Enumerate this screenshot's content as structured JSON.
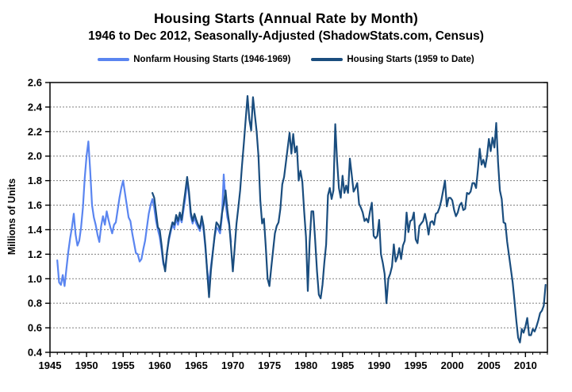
{
  "header": {
    "title": "Housing Starts (Annual Rate by Month)",
    "subtitle": "1946 to Dec 2012, Seasonally-Adjusted (ShadowStats.com, Census)"
  },
  "legend": [
    {
      "label": "Nonfarm Housing Starts (1946-1969)",
      "color": "#5A85F0"
    },
    {
      "label": "Housing Starts (1959 to Date)",
      "color": "#1A4D7E"
    }
  ],
  "colors": {
    "light_series": "#5A85F0",
    "dark_series": "#1A4D7E",
    "gridline": "#808080",
    "frame": "#000000",
    "background": "#FFFFFF"
  },
  "chart_data": {
    "type": "line",
    "title": "Housing Starts (Annual Rate by Month)",
    "subtitle": "1946 to Dec 2012, Seasonally-Adjusted (ShadowStats.com, Census)",
    "xlabel": "",
    "ylabel": "Millions of Units",
    "grid": "horizontal-dotted",
    "legend_position": "top",
    "x_axis": {
      "min": 1945,
      "max": 2013,
      "major_tick_step": 5,
      "minor_tick_step": 1,
      "tick_labels": [
        "1945",
        "1950",
        "1955",
        "1960",
        "1965",
        "1970",
        "1975",
        "1980",
        "1985",
        "1990",
        "1995",
        "2000",
        "2005",
        "2010"
      ]
    },
    "y_axis": {
      "min": 0.4,
      "max": 2.6,
      "tick_step": 0.2,
      "tick_labels": [
        "0.4",
        "0.6",
        "0.8",
        "1.0",
        "1.2",
        "1.4",
        "1.6",
        "1.8",
        "2.0",
        "2.2",
        "2.4",
        "2.6"
      ]
    },
    "series": [
      {
        "name": "Nonfarm Housing Starts (1946-1969)",
        "color": "#5A85F0",
        "start_year": 1946.0,
        "step_years": 0.25,
        "values": [
          1.15,
          0.97,
          0.95,
          1.03,
          0.94,
          1.08,
          1.22,
          1.33,
          1.42,
          1.53,
          1.36,
          1.27,
          1.31,
          1.42,
          1.58,
          1.82,
          2.0,
          2.12,
          1.88,
          1.6,
          1.5,
          1.44,
          1.36,
          1.3,
          1.43,
          1.51,
          1.44,
          1.55,
          1.48,
          1.42,
          1.37,
          1.44,
          1.46,
          1.56,
          1.66,
          1.74,
          1.8,
          1.7,
          1.6,
          1.5,
          1.47,
          1.37,
          1.29,
          1.21,
          1.2,
          1.14,
          1.16,
          1.24,
          1.31,
          1.42,
          1.53,
          1.6,
          1.65,
          1.58,
          1.47,
          1.4,
          1.34,
          1.24,
          1.12,
          1.08,
          1.22,
          1.31,
          1.38,
          1.44,
          1.41,
          1.49,
          1.44,
          1.51,
          1.46,
          1.56,
          1.66,
          1.8,
          1.68,
          1.51,
          1.45,
          1.5,
          1.45,
          1.42,
          1.39,
          1.48,
          1.4,
          1.25,
          1.07,
          0.95,
          1.1,
          1.22,
          1.34,
          1.42,
          1.4,
          1.37,
          1.5,
          1.85,
          1.62,
          1.5,
          1.44,
          1.3
        ]
      },
      {
        "name": "Housing Starts (1959 to Date)",
        "color": "#1A4D7E",
        "start_year": 1959.0,
        "step_years": 0.25,
        "values": [
          1.7,
          1.66,
          1.54,
          1.42,
          1.4,
          1.28,
          1.14,
          1.06,
          1.21,
          1.33,
          1.4,
          1.46,
          1.44,
          1.52,
          1.47,
          1.54,
          1.48,
          1.6,
          1.71,
          1.83,
          1.71,
          1.54,
          1.47,
          1.53,
          1.48,
          1.44,
          1.41,
          1.51,
          1.43,
          1.27,
          1.05,
          0.85,
          1.07,
          1.21,
          1.35,
          1.46,
          1.44,
          1.4,
          1.53,
          1.61,
          1.72,
          1.56,
          1.45,
          1.26,
          1.06,
          1.25,
          1.45,
          1.58,
          1.72,
          1.92,
          2.1,
          2.3,
          2.49,
          2.3,
          2.21,
          2.48,
          2.34,
          2.2,
          2.0,
          1.64,
          1.45,
          1.49,
          1.26,
          1.0,
          0.94,
          1.09,
          1.23,
          1.37,
          1.43,
          1.46,
          1.57,
          1.77,
          1.83,
          1.95,
          2.07,
          2.19,
          2.02,
          2.18,
          2.03,
          2.08,
          1.8,
          1.88,
          1.79,
          1.55,
          1.34,
          0.9,
          1.3,
          1.55,
          1.55,
          1.32,
          1.06,
          0.87,
          0.84,
          0.95,
          1.13,
          1.28,
          1.68,
          1.74,
          1.65,
          1.72,
          2.26,
          1.96,
          1.74,
          1.66,
          1.84,
          1.7,
          1.76,
          1.7,
          1.98,
          1.85,
          1.71,
          1.74,
          1.78,
          1.61,
          1.58,
          1.54,
          1.47,
          1.49,
          1.46,
          1.55,
          1.62,
          1.35,
          1.33,
          1.35,
          1.48,
          1.2,
          1.13,
          1.04,
          0.8,
          1.0,
          1.04,
          1.1,
          1.28,
          1.14,
          1.18,
          1.25,
          1.16,
          1.27,
          1.31,
          1.54,
          1.38,
          1.47,
          1.48,
          1.54,
          1.32,
          1.29,
          1.43,
          1.45,
          1.47,
          1.53,
          1.46,
          1.36,
          1.46,
          1.47,
          1.44,
          1.53,
          1.54,
          1.58,
          1.64,
          1.72,
          1.8,
          1.59,
          1.66,
          1.66,
          1.64,
          1.56,
          1.51,
          1.54,
          1.6,
          1.62,
          1.56,
          1.57,
          1.7,
          1.69,
          1.71,
          1.78,
          1.78,
          1.74,
          1.89,
          2.06,
          1.93,
          1.97,
          1.91,
          2.0,
          2.14,
          2.04,
          2.15,
          2.07,
          2.27,
          1.95,
          1.72,
          1.65,
          1.46,
          1.45,
          1.3,
          1.19,
          1.08,
          0.97,
          0.82,
          0.66,
          0.52,
          0.48,
          0.59,
          0.56,
          0.61,
          0.68,
          0.54,
          0.54,
          0.59,
          0.57,
          0.61,
          0.66,
          0.72,
          0.74,
          0.78,
          0.95
        ]
      }
    ]
  }
}
